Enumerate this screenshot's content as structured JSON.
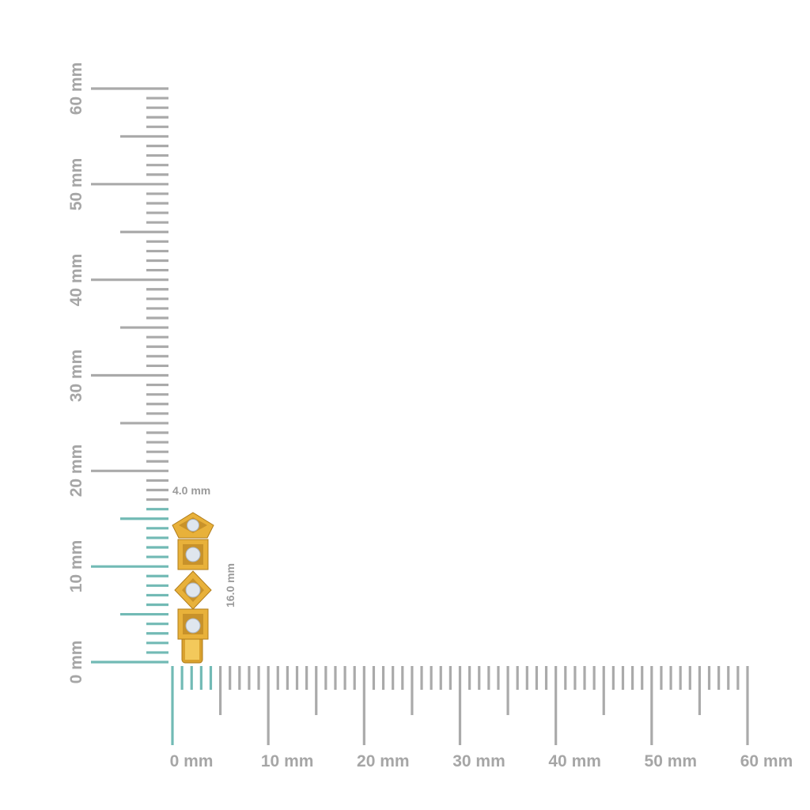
{
  "ruler": {
    "unit": "mm",
    "range_mm": [
      0,
      60
    ],
    "vertical_labels": [
      "0 mm",
      "10 mm",
      "20 mm",
      "30 mm",
      "40 mm",
      "50 mm",
      "60 mm"
    ],
    "horizontal_labels": [
      "0 mm",
      "10 mm",
      "20 mm",
      "30 mm",
      "40 mm",
      "50 mm",
      "60 mm"
    ],
    "tick_color": "#aaaaaa",
    "highlight_color": "#72bab5"
  },
  "product": {
    "width_label": "4.0 mm",
    "height_label": "16.0 mm",
    "width_mm": 4.0,
    "height_mm": 16.0,
    "metal_color": "#e8b13a",
    "stone_color": "#dfe6ee"
  }
}
